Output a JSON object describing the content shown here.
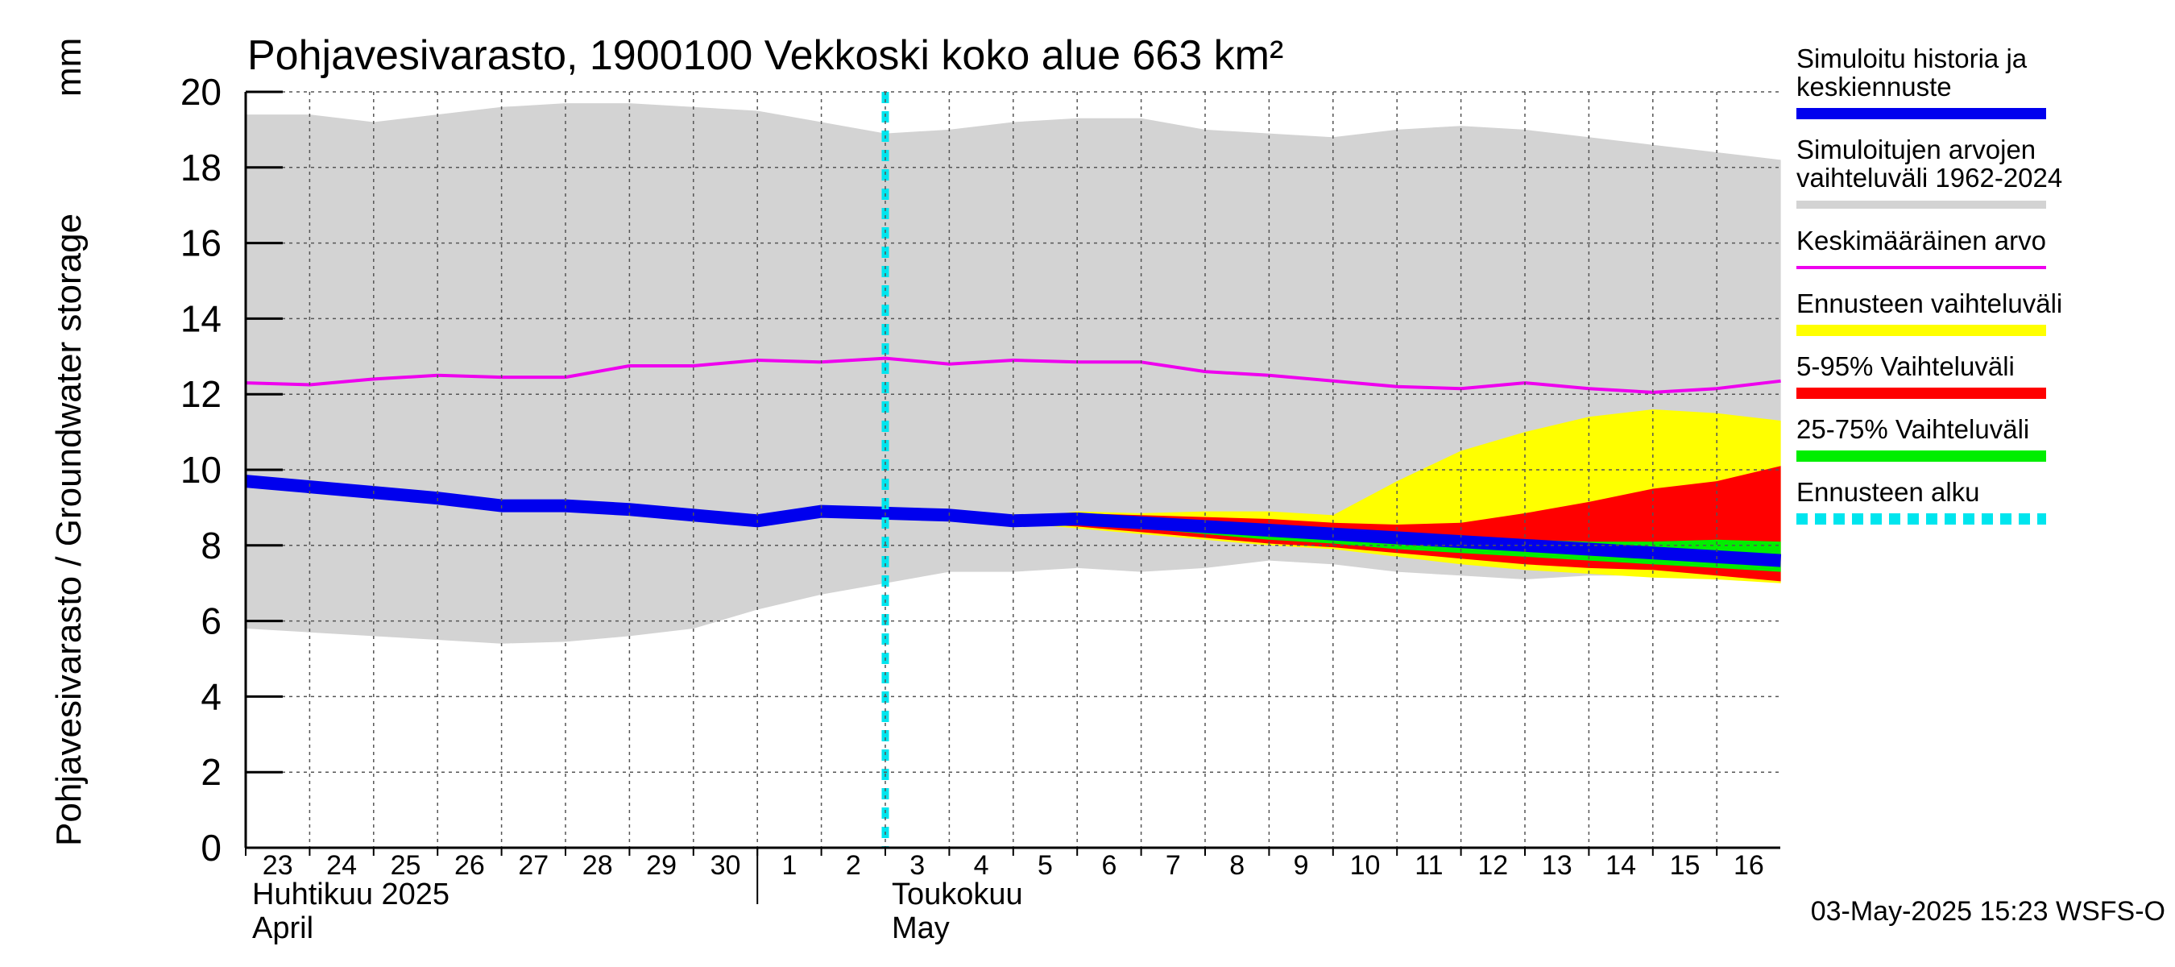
{
  "chart_data": {
    "type": "area",
    "title": "Pohjavesivarasto, 1900100 Vekkoski koko alue 663 km²",
    "ylabel_unit": "mm",
    "ylabel": "Pohjavesivarasto / Groundwater storage",
    "ylim": [
      0,
      20
    ],
    "yticks": [
      0,
      2,
      4,
      6,
      8,
      10,
      12,
      14,
      16,
      18,
      20
    ],
    "grid": true,
    "legend_position": "right",
    "x_day_labels": [
      "23",
      "24",
      "25",
      "26",
      "27",
      "28",
      "29",
      "30",
      "1",
      "2",
      "3",
      "4",
      "5",
      "6",
      "7",
      "8",
      "9",
      "10",
      "11",
      "12",
      "13",
      "14",
      "15",
      "16"
    ],
    "x_dates": [
      "2025-04-23",
      "2025-04-24",
      "2025-04-25",
      "2025-04-26",
      "2025-04-27",
      "2025-04-28",
      "2025-04-29",
      "2025-04-30",
      "2025-05-01",
      "2025-05-02",
      "2025-05-03",
      "2025-05-04",
      "2025-05-05",
      "2025-05-06",
      "2025-05-07",
      "2025-05-08",
      "2025-05-09",
      "2025-05-10",
      "2025-05-11",
      "2025-05-12",
      "2025-05-13",
      "2025-05-14",
      "2025-05-15",
      "2025-05-16"
    ],
    "month_labels": [
      {
        "fi": "Huhtikuu  2025",
        "en": "April",
        "start": "2025-04-23"
      },
      {
        "fi": "Toukokuu",
        "en": "May",
        "start": "2025-05-03"
      }
    ],
    "forecast_start": "2025-05-03",
    "legend": [
      {
        "label": "Simuloitu historia ja keskiennuste",
        "color": "#0000ee"
      },
      {
        "label": "Simuloitujen arvojen vaihteluväli 1962-2024",
        "color": "#d3d3d3"
      },
      {
        "label": "Keskimääräinen arvo",
        "color": "#ee00ee"
      },
      {
        "label": "Ennusteen vaihteluväli",
        "color": "#ffff00"
      },
      {
        "label": "5-95% Vaihteluväli",
        "color": "#ff0000"
      },
      {
        "label": "25-75% Vaihteluväli",
        "color": "#00ee00"
      },
      {
        "label": "Ennusteen alku",
        "color": "#00e5ee"
      }
    ],
    "series": [
      {
        "key": "hist_range",
        "x": [
          "2025-04-23",
          "2025-04-24",
          "2025-04-25",
          "2025-04-26",
          "2025-04-27",
          "2025-04-28",
          "2025-04-29",
          "2025-04-30",
          "2025-05-01",
          "2025-05-02",
          "2025-05-03",
          "2025-05-04",
          "2025-05-05",
          "2025-05-06",
          "2025-05-07",
          "2025-05-08",
          "2025-05-09",
          "2025-05-10",
          "2025-05-11",
          "2025-05-12",
          "2025-05-13",
          "2025-05-14",
          "2025-05-15",
          "2025-05-16",
          "2025-05-17"
        ],
        "low": [
          5.8,
          5.7,
          5.6,
          5.5,
          5.4,
          5.45,
          5.6,
          5.8,
          6.3,
          6.7,
          7.0,
          7.3,
          7.3,
          7.4,
          7.3,
          7.4,
          7.6,
          7.5,
          7.3,
          7.2,
          7.1,
          7.2,
          7.2,
          7.1,
          7.1
        ],
        "high": [
          19.4,
          19.4,
          19.2,
          19.4,
          19.6,
          19.7,
          19.7,
          19.6,
          19.5,
          19.2,
          18.9,
          19.0,
          19.2,
          19.3,
          19.3,
          19.0,
          18.9,
          18.8,
          19.0,
          19.1,
          19.0,
          18.8,
          18.6,
          18.4,
          18.2
        ]
      },
      {
        "key": "forecast_range",
        "x": [
          "2025-05-05",
          "2025-05-06",
          "2025-05-07",
          "2025-05-08",
          "2025-05-09",
          "2025-05-10",
          "2025-05-11",
          "2025-05-12",
          "2025-05-13",
          "2025-05-14",
          "2025-05-15",
          "2025-05-16",
          "2025-05-17"
        ],
        "low": [
          8.6,
          8.45,
          8.3,
          8.15,
          8.0,
          7.9,
          7.7,
          7.5,
          7.35,
          7.25,
          7.15,
          7.1,
          7.0
        ],
        "high": [
          8.7,
          8.9,
          8.85,
          8.9,
          8.9,
          8.8,
          9.7,
          10.5,
          11.0,
          11.4,
          11.6,
          11.5,
          11.3
        ]
      },
      {
        "key": "p5_95",
        "x": [
          "2025-05-05",
          "2025-05-06",
          "2025-05-07",
          "2025-05-08",
          "2025-05-09",
          "2025-05-10",
          "2025-05-11",
          "2025-05-12",
          "2025-05-13",
          "2025-05-14",
          "2025-05-15",
          "2025-05-16",
          "2025-05-17"
        ],
        "low": [
          8.6,
          8.5,
          8.35,
          8.2,
          8.05,
          7.95,
          7.8,
          7.65,
          7.5,
          7.4,
          7.35,
          7.2,
          7.05
        ],
        "high": [
          8.7,
          8.85,
          8.8,
          8.75,
          8.7,
          8.6,
          8.55,
          8.6,
          8.85,
          9.15,
          9.5,
          9.7,
          10.1
        ]
      },
      {
        "key": "p25_75",
        "x": [
          "2025-05-05",
          "2025-05-06",
          "2025-05-07",
          "2025-05-08",
          "2025-05-09",
          "2025-05-10",
          "2025-05-11",
          "2025-05-12",
          "2025-05-13",
          "2025-05-14",
          "2025-05-15",
          "2025-05-16",
          "2025-05-17"
        ],
        "low": [
          8.6,
          8.55,
          8.45,
          8.3,
          8.15,
          8.05,
          7.9,
          7.8,
          7.7,
          7.6,
          7.5,
          7.4,
          7.3
        ],
        "high": [
          8.7,
          8.75,
          8.7,
          8.6,
          8.5,
          8.4,
          8.3,
          8.2,
          8.15,
          8.1,
          8.1,
          8.15,
          8.1
        ]
      },
      {
        "key": "mean",
        "x": [
          "2025-04-23",
          "2025-04-24",
          "2025-04-25",
          "2025-04-26",
          "2025-04-27",
          "2025-04-28",
          "2025-04-29",
          "2025-04-30",
          "2025-05-01",
          "2025-05-02",
          "2025-05-03",
          "2025-05-04",
          "2025-05-05",
          "2025-05-06",
          "2025-05-07",
          "2025-05-08",
          "2025-05-09",
          "2025-05-10",
          "2025-05-11",
          "2025-05-12",
          "2025-05-13",
          "2025-05-14",
          "2025-05-15",
          "2025-05-16",
          "2025-05-17"
        ],
        "values": [
          12.3,
          12.25,
          12.4,
          12.5,
          12.45,
          12.45,
          12.75,
          12.75,
          12.9,
          12.85,
          12.95,
          12.8,
          12.9,
          12.85,
          12.85,
          12.6,
          12.5,
          12.35,
          12.2,
          12.15,
          12.3,
          12.15,
          12.05,
          12.15,
          12.35
        ]
      },
      {
        "key": "median",
        "x": [
          "2025-04-23",
          "2025-04-24",
          "2025-04-25",
          "2025-04-26",
          "2025-04-27",
          "2025-04-28",
          "2025-04-29",
          "2025-04-30",
          "2025-05-01",
          "2025-05-02",
          "2025-05-03",
          "2025-05-04",
          "2025-05-05",
          "2025-05-06",
          "2025-05-07",
          "2025-05-08",
          "2025-05-09",
          "2025-05-10",
          "2025-05-11",
          "2025-05-12",
          "2025-05-13",
          "2025-05-14",
          "2025-05-15",
          "2025-05-16",
          "2025-05-17"
        ],
        "values": [
          9.7,
          9.55,
          9.4,
          9.25,
          9.05,
          9.05,
          8.95,
          8.8,
          8.65,
          8.9,
          8.85,
          8.8,
          8.65,
          8.7,
          8.6,
          8.5,
          8.4,
          8.3,
          8.2,
          8.1,
          8.0,
          7.9,
          7.8,
          7.7,
          7.6
        ]
      }
    ]
  },
  "footer": {
    "timestamp": "03-May-2025 15:23 WSFS-O"
  }
}
